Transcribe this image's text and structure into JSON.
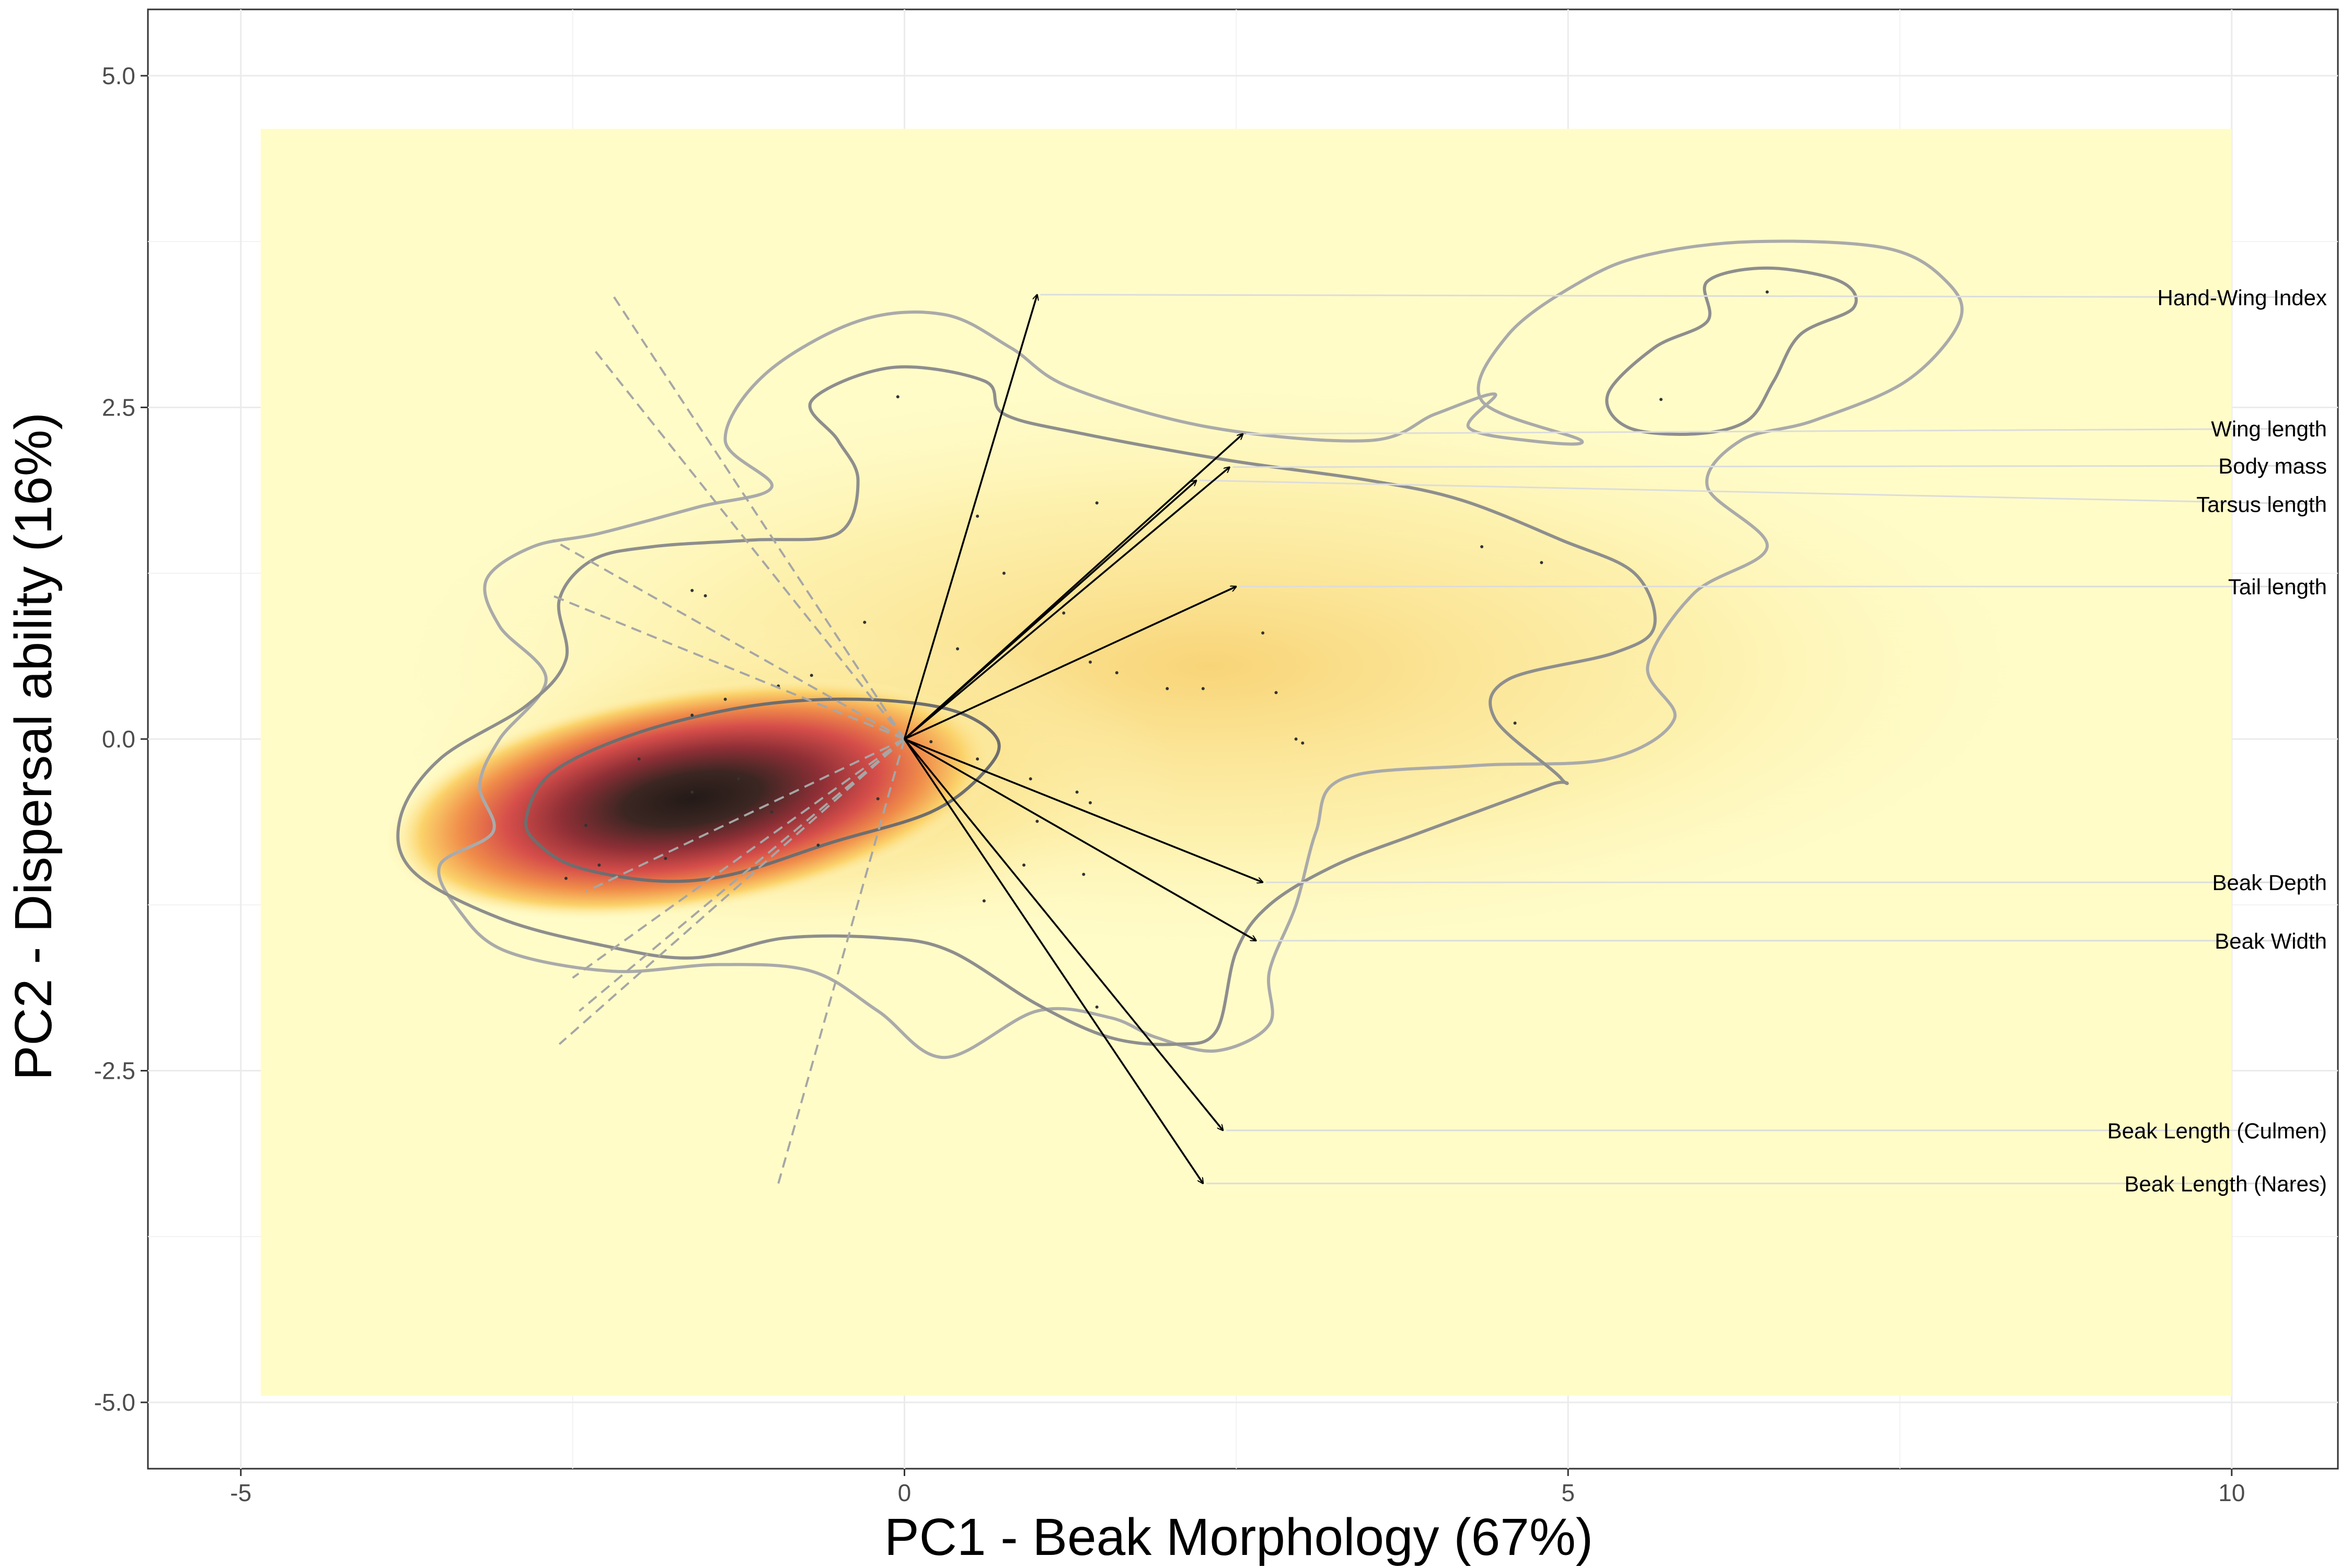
{
  "chart_data": {
    "type": "biplot",
    "xlabel": "PC1 - Beak Morphology (67%)",
    "ylabel": "PC2 - Dispersal ability (16%)",
    "xlim": [
      -5.7,
      10.8
    ],
    "ylim": [
      -5.5,
      5.5
    ],
    "xticks": [
      {
        "value": -5,
        "label": "-5"
      },
      {
        "value": 0,
        "label": "0"
      },
      {
        "value": 5,
        "label": "5"
      },
      {
        "value": 10,
        "label": "10"
      }
    ],
    "yticks": [
      {
        "value": 5,
        "label": "5.0"
      },
      {
        "value": 2.5,
        "label": "2.5"
      },
      {
        "value": 0,
        "label": "0.0"
      },
      {
        "value": -2.5,
        "label": "-2.5"
      },
      {
        "value": -5,
        "label": "-5.0"
      }
    ],
    "grid": true,
    "density_extent": {
      "x": [
        -4.85,
        10.0
      ],
      "y": [
        -4.95,
        4.6
      ]
    },
    "density_peak": {
      "x": -1.6,
      "y": -0.45
    },
    "loadings": [
      {
        "label": "Hand-Wing Index",
        "x": 1.0,
        "y": 3.35,
        "label_y": 3.33
      },
      {
        "label": "Wing length",
        "x": 2.55,
        "y": 2.3,
        "label_y": 2.34
      },
      {
        "label": "Body mass",
        "x": 2.45,
        "y": 2.05,
        "label_y": 2.06
      },
      {
        "label": "Tarsus length",
        "x": 2.2,
        "y": 1.95,
        "label_y": 1.77
      },
      {
        "label": "Tail length",
        "x": 2.5,
        "y": 1.15,
        "label_y": 1.15
      },
      {
        "label": "Beak Depth",
        "x": 2.7,
        "y": -1.08,
        "label_y": -1.08
      },
      {
        "label": "Beak Width",
        "x": 2.65,
        "y": -1.52,
        "label_y": -1.52
      },
      {
        "label": "Beak Length (Culmen)",
        "x": 2.4,
        "y": -2.95,
        "label_y": -2.95
      },
      {
        "label": "Beak Length (Nares)",
        "x": 2.25,
        "y": -3.35,
        "label_y": -3.35
      }
    ],
    "dashed_vectors": [
      {
        "x": -2.2,
        "y": 3.35
      },
      {
        "x": -2.35,
        "y": 2.95
      },
      {
        "x": -2.65,
        "y": 1.5
      },
      {
        "x": -2.65,
        "y": 1.08
      },
      {
        "x": -2.4,
        "y": -1.15
      },
      {
        "x": -2.45,
        "y": -2.05
      },
      {
        "x": -2.6,
        "y": -2.3
      },
      {
        "x": -2.5,
        "y": -1.8
      },
      {
        "x": -0.95,
        "y": -3.35
      }
    ],
    "contours": [
      {
        "level": "outer",
        "color": "#aaaaaa",
        "points": [
          [
            -3.1,
            -0.7
          ],
          [
            -3.2,
            -0.35
          ],
          [
            -3.05,
            0.0
          ],
          [
            -2.7,
            0.45
          ],
          [
            -3.05,
            0.85
          ],
          [
            -3.15,
            1.2
          ],
          [
            -2.8,
            1.45
          ],
          [
            -2.3,
            1.55
          ],
          [
            -1.55,
            1.75
          ],
          [
            -1.0,
            1.9
          ],
          [
            -1.35,
            2.25
          ],
          [
            -1.05,
            2.75
          ],
          [
            -0.35,
            3.15
          ],
          [
            0.3,
            3.2
          ],
          [
            0.8,
            2.95
          ],
          [
            1.25,
            2.65
          ],
          [
            2.3,
            2.35
          ],
          [
            3.5,
            2.25
          ],
          [
            4.0,
            2.45
          ],
          [
            4.45,
            2.6
          ],
          [
            4.25,
            2.35
          ],
          [
            4.7,
            2.25
          ],
          [
            5.1,
            2.25
          ],
          [
            4.35,
            2.55
          ],
          [
            4.55,
            3.05
          ],
          [
            5.1,
            3.45
          ],
          [
            5.6,
            3.65
          ],
          [
            6.4,
            3.75
          ],
          [
            7.4,
            3.7
          ],
          [
            7.85,
            3.45
          ],
          [
            7.95,
            3.15
          ],
          [
            7.55,
            2.7
          ],
          [
            6.85,
            2.4
          ],
          [
            6.3,
            2.25
          ],
          [
            6.05,
            1.9
          ],
          [
            6.5,
            1.45
          ],
          [
            5.95,
            1.1
          ],
          [
            5.6,
            0.55
          ],
          [
            5.8,
            0.15
          ],
          [
            5.3,
            -0.15
          ],
          [
            4.3,
            -0.2
          ],
          [
            3.3,
            -0.3
          ],
          [
            3.1,
            -0.7
          ],
          [
            2.95,
            -1.25
          ],
          [
            2.75,
            -1.75
          ],
          [
            2.75,
            -2.15
          ],
          [
            2.35,
            -2.35
          ],
          [
            1.9,
            -2.25
          ],
          [
            1.55,
            -2.1
          ],
          [
            1.0,
            -2.05
          ],
          [
            0.3,
            -2.4
          ],
          [
            -0.2,
            -2.05
          ],
          [
            -0.7,
            -1.75
          ],
          [
            -1.4,
            -1.7
          ],
          [
            -2.2,
            -1.75
          ],
          [
            -3.0,
            -1.6
          ],
          [
            -3.35,
            -1.3
          ],
          [
            -3.5,
            -0.95
          ]
        ]
      },
      {
        "level": "middle",
        "color": "#8e8e8e",
        "points": [
          [
            -3.8,
            -0.6
          ],
          [
            -3.5,
            -0.15
          ],
          [
            -2.85,
            0.25
          ],
          [
            -2.55,
            0.6
          ],
          [
            -2.6,
            1.05
          ],
          [
            -2.35,
            1.35
          ],
          [
            -1.9,
            1.45
          ],
          [
            -1.15,
            1.5
          ],
          [
            -0.5,
            1.55
          ],
          [
            -0.35,
            1.95
          ],
          [
            -0.5,
            2.25
          ],
          [
            -0.7,
            2.55
          ],
          [
            -0.1,
            2.8
          ],
          [
            0.6,
            2.7
          ],
          [
            0.75,
            2.45
          ],
          [
            1.35,
            2.3
          ],
          [
            2.45,
            2.1
          ],
          [
            3.5,
            1.95
          ],
          [
            4.2,
            1.8
          ],
          [
            4.95,
            1.5
          ],
          [
            5.5,
            1.25
          ],
          [
            5.65,
            0.85
          ],
          [
            5.35,
            0.65
          ],
          [
            4.55,
            0.45
          ],
          [
            4.45,
            0.15
          ],
          [
            4.95,
            -0.3
          ],
          [
            4.85,
            -0.35
          ],
          [
            3.9,
            -0.7
          ],
          [
            3.25,
            -0.95
          ],
          [
            2.75,
            -1.25
          ],
          [
            2.5,
            -1.6
          ],
          [
            2.35,
            -2.2
          ],
          [
            2.05,
            -2.3
          ],
          [
            1.55,
            -2.25
          ],
          [
            1.0,
            -2.0
          ],
          [
            0.35,
            -1.6
          ],
          [
            -0.15,
            -1.5
          ],
          [
            -0.9,
            -1.5
          ],
          [
            -1.6,
            -1.65
          ],
          [
            -2.3,
            -1.55
          ],
          [
            -3.05,
            -1.35
          ],
          [
            -3.7,
            -1.0
          ]
        ]
      },
      {
        "level": "inner",
        "color": "#6e6e6e",
        "points": [
          [
            -2.85,
            -0.6
          ],
          [
            -2.65,
            -0.25
          ],
          [
            -2.0,
            0.05
          ],
          [
            -1.15,
            0.25
          ],
          [
            -0.35,
            0.3
          ],
          [
            0.35,
            0.22
          ],
          [
            0.7,
            0.0
          ],
          [
            0.6,
            -0.25
          ],
          [
            0.2,
            -0.55
          ],
          [
            -0.55,
            -0.78
          ],
          [
            -1.3,
            -1.02
          ],
          [
            -1.85,
            -1.07
          ],
          [
            -2.45,
            -0.97
          ],
          [
            -2.75,
            -0.8
          ]
        ]
      },
      {
        "level": "peak",
        "color": "#8e8e8e",
        "points": [
          [
            5.3,
            2.6
          ],
          [
            5.65,
            2.95
          ],
          [
            6.05,
            3.15
          ],
          [
            6.05,
            3.45
          ],
          [
            6.5,
            3.55
          ],
          [
            7.05,
            3.45
          ],
          [
            7.15,
            3.25
          ],
          [
            6.75,
            3.05
          ],
          [
            6.55,
            2.7
          ],
          [
            6.35,
            2.4
          ],
          [
            5.95,
            2.3
          ],
          [
            5.45,
            2.35
          ]
        ]
      }
    ],
    "points": [
      [
        -0.05,
        2.58
      ],
      [
        0.55,
        1.68
      ],
      [
        0.75,
        1.25
      ],
      [
        1.45,
        1.78
      ],
      [
        1.2,
        0.95
      ],
      [
        1.4,
        0.58
      ],
      [
        1.6,
        0.5
      ],
      [
        1.98,
        0.38
      ],
      [
        2.25,
        0.38
      ],
      [
        2.7,
        0.8
      ],
      [
        2.8,
        0.35
      ],
      [
        2.95,
        0.0
      ],
      [
        3.0,
        -0.03
      ],
      [
        4.35,
        1.45
      ],
      [
        4.8,
        1.33
      ],
      [
        4.6,
        0.12
      ],
      [
        6.5,
        3.37
      ],
      [
        5.7,
        2.56
      ],
      [
        -1.6,
        1.12
      ],
      [
        -1.5,
        1.08
      ],
      [
        -0.3,
        0.88
      ],
      [
        0.4,
        0.68
      ],
      [
        -0.7,
        0.48
      ],
      [
        -0.95,
        0.4
      ],
      [
        -1.35,
        0.3
      ],
      [
        -1.6,
        0.18
      ],
      [
        0.2,
        -0.02
      ],
      [
        0.55,
        -0.15
      ],
      [
        0.95,
        -0.3
      ],
      [
        1.3,
        -0.4
      ],
      [
        1.4,
        -0.48
      ],
      [
        1.0,
        -0.62
      ],
      [
        0.9,
        -0.95
      ],
      [
        1.35,
        -1.02
      ],
      [
        0.6,
        -1.22
      ],
      [
        1.45,
        -2.02
      ],
      [
        -0.65,
        -0.8
      ],
      [
        -1.8,
        -0.9
      ],
      [
        -2.4,
        -0.65
      ],
      [
        -2.55,
        -1.05
      ],
      [
        -2.3,
        -0.95
      ],
      [
        -2.0,
        -0.15
      ],
      [
        -1.6,
        -0.4
      ],
      [
        -1.25,
        -0.3
      ],
      [
        -1.0,
        -0.55
      ],
      [
        -0.2,
        -0.45
      ]
    ]
  }
}
